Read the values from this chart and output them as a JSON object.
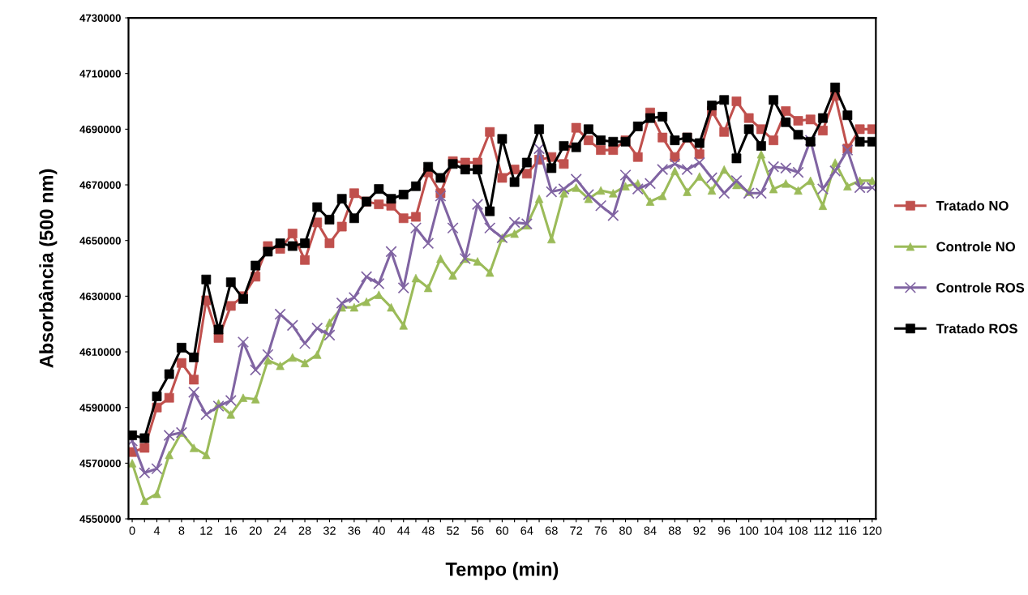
{
  "chart_data": {
    "type": "line",
    "xlabel": "Tempo (min)",
    "ylabel": "Absorbância (500 nm)",
    "x": [
      0,
      2,
      4,
      6,
      8,
      10,
      12,
      14,
      16,
      18,
      20,
      22,
      24,
      26,
      28,
      30,
      32,
      34,
      36,
      38,
      40,
      42,
      44,
      46,
      48,
      50,
      52,
      54,
      56,
      58,
      60,
      62,
      64,
      66,
      68,
      70,
      72,
      74,
      76,
      78,
      80,
      82,
      84,
      86,
      88,
      90,
      92,
      94,
      96,
      98,
      100,
      102,
      104,
      106,
      108,
      110,
      112,
      114,
      116,
      118,
      120
    ],
    "series": [
      {
        "name": "Tratado NO",
        "color": "#c0504d",
        "marker": "square",
        "values": [
          4574000,
          4575500,
          4590000,
          4593500,
          4606000,
          4600000,
          4628500,
          4615000,
          4626500,
          4630000,
          4637000,
          4648000,
          4647000,
          4652500,
          4643000,
          4656500,
          4649000,
          4655000,
          4667000,
          4664000,
          4663000,
          4662500,
          4658000,
          4658500,
          4674500,
          4667000,
          4678500,
          4678000,
          4678000,
          4689000,
          4672500,
          4675500,
          4674000,
          4679000,
          4680000,
          4677500,
          4690500,
          4686000,
          4682500,
          4682500,
          4686000,
          4680000,
          4696000,
          4687000,
          4680000,
          4687000,
          4681000,
          4696500,
          4689000,
          4700000,
          4694000,
          4690000,
          4686000,
          4696500,
          4693000,
          4693500,
          4689500,
          4702000,
          4683000,
          4690000,
          4690000
        ]
      },
      {
        "name": "Controle NO",
        "color": "#9bbb59",
        "marker": "triangle",
        "values": [
          4570000,
          4556500,
          4559000,
          4573000,
          4581000,
          4575500,
          4573000,
          4591500,
          4587500,
          4593500,
          4593000,
          4607000,
          4605000,
          4608000,
          4606000,
          4609000,
          4620500,
          4626000,
          4626000,
          4628000,
          4630500,
          4626000,
          4619500,
          4636500,
          4633000,
          4643500,
          4637500,
          4643500,
          4642500,
          4638500,
          4651000,
          4652500,
          4655500,
          4665000,
          4650500,
          4667000,
          4669000,
          4665000,
          4668000,
          4667000,
          4669500,
          4670500,
          4664000,
          4666000,
          4675000,
          4667500,
          4673000,
          4668000,
          4675500,
          4670000,
          4667500,
          4681000,
          4668500,
          4670500,
          4668000,
          4671500,
          4662500,
          4678000,
          4669500,
          4671500,
          4671500
        ]
      },
      {
        "name": "Controle ROS",
        "color": "#8064a2",
        "marker": "cross",
        "values": [
          4578000,
          4566500,
          4568000,
          4580000,
          4581000,
          4595500,
          4587500,
          4590500,
          4592500,
          4613500,
          4603500,
          4609000,
          4623500,
          4619500,
          4613000,
          4618500,
          4616000,
          4627500,
          4629500,
          4637000,
          4634500,
          4646000,
          4633000,
          4654500,
          4649000,
          4666000,
          4654500,
          4643500,
          4663000,
          4654500,
          4651000,
          4656500,
          4656000,
          4683000,
          4667500,
          4668500,
          4672000,
          4666500,
          4662500,
          4659000,
          4673500,
          4668500,
          4670500,
          4675500,
          4677500,
          4675500,
          4678000,
          4672500,
          4667000,
          4671500,
          4667000,
          4667000,
          4676500,
          4676000,
          4674500,
          4686000,
          4668500,
          4675000,
          4682500,
          4669000,
          4669000
        ]
      },
      {
        "name": "Tratado ROS",
        "color": "#000000",
        "marker": "square",
        "values": [
          4580000,
          4579000,
          4594000,
          4602000,
          4611500,
          4608000,
          4636000,
          4618000,
          4635000,
          4629000,
          4641000,
          4646000,
          4649000,
          4648000,
          4649000,
          4662000,
          4657500,
          4665000,
          4658000,
          4664000,
          4668500,
          4665000,
          4666500,
          4669500,
          4676500,
          4672500,
          4677500,
          4675500,
          4675500,
          4660500,
          4686500,
          4671000,
          4678000,
          4690000,
          4676000,
          4684000,
          4683500,
          4690000,
          4686000,
          4685500,
          4685500,
          4691000,
          4694000,
          4694500,
          4686000,
          4687000,
          4685000,
          4698500,
          4700500,
          4679500,
          4690000,
          4684000,
          4700500,
          4692500,
          4688000,
          4685500,
          4694000,
          4705000,
          4695000,
          4685500,
          4685500
        ]
      }
    ],
    "xlim": [
      -0.6,
      120.6
    ],
    "ylim": [
      4550000,
      4730000
    ],
    "xticks": [
      0,
      {
        "value": 2,
        "label": null
      },
      4,
      {
        "value": 6,
        "label": null
      },
      8,
      {
        "value": 10,
        "label": null
      },
      12,
      {
        "value": 14,
        "label": null
      },
      16,
      {
        "value": 18,
        "label": null
      },
      20,
      {
        "value": 22,
        "label": null
      },
      24,
      {
        "value": 26,
        "label": null
      },
      28,
      {
        "value": 30,
        "label": null
      },
      32,
      {
        "value": 34,
        "label": null
      },
      36,
      {
        "value": 38,
        "label": null
      },
      40,
      {
        "value": 42,
        "label": null
      },
      44,
      {
        "value": 46,
        "label": null
      },
      48,
      {
        "value": 50,
        "label": null
      },
      52,
      {
        "value": 54,
        "label": null
      },
      56,
      {
        "value": 58,
        "label": null
      },
      60,
      {
        "value": 62,
        "label": null
      },
      64,
      {
        "value": 66,
        "label": null
      },
      68,
      {
        "value": 70,
        "label": null
      },
      72,
      {
        "value": 74,
        "label": null
      },
      76,
      {
        "value": 78,
        "label": null
      },
      80,
      {
        "value": 82,
        "label": null
      },
      84,
      {
        "value": 86,
        "label": null
      },
      88,
      {
        "value": 90,
        "label": null
      },
      92,
      {
        "value": 94,
        "label": null
      },
      96,
      {
        "value": 98,
        "label": null
      },
      100,
      {
        "value": 102,
        "label": null
      },
      104,
      {
        "value": 106,
        "label": null
      },
      108,
      {
        "value": 110,
        "label": null
      },
      112,
      {
        "value": 114,
        "label": null
      },
      116,
      {
        "value": 118,
        "label": null
      },
      120
    ],
    "yticks": [
      4550000,
      4570000,
      4590000,
      4610000,
      4630000,
      4650000,
      4670000,
      4690000,
      4710000,
      4730000
    ],
    "grid": false,
    "legend": "right",
    "line_style": "solid"
  }
}
